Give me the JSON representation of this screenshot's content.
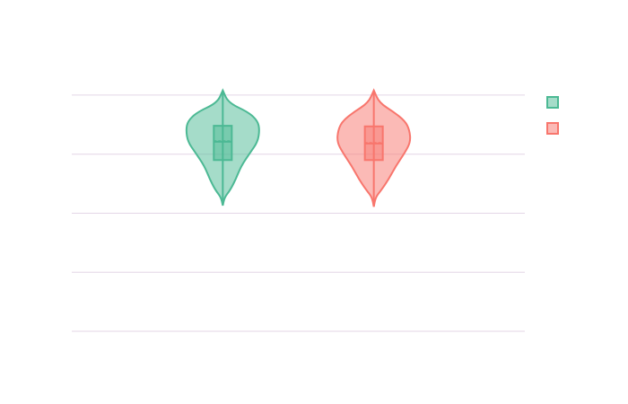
{
  "chart_data": {
    "type": "violin",
    "x": [
      1,
      2
    ],
    "xlim": [
      0,
      3
    ],
    "ylim": [
      0,
      4.09
    ],
    "yticks": [
      0,
      1,
      2,
      3,
      4
    ],
    "grid": true,
    "series": [
      {
        "color": "#4cb994",
        "min": 2.13,
        "q1": 2.9,
        "median": 3.21,
        "mean": 3.22,
        "q3": 3.48,
        "max": 4.08,
        "kde_y": [
          4.08,
          3.87,
          3.71,
          3.56,
          3.41,
          3.21,
          3.03,
          2.8,
          2.57,
          2.39,
          2.27,
          2.13
        ],
        "density": [
          0,
          0.15,
          0.7,
          0.95,
          1,
          0.95,
          0.75,
          0.5,
          0.35,
          0.2,
          0.05,
          0
        ]
      },
      {
        "color": "#f8766d",
        "min": 2.11,
        "q1": 2.9,
        "median": 3.18,
        "mean": 3.19,
        "q3": 3.47,
        "max": 4.08,
        "kde_y": [
          4.08,
          3.87,
          3.71,
          3.56,
          3.41,
          3.21,
          3.03,
          2.8,
          2.57,
          2.39,
          2.27,
          2.11
        ],
        "density": [
          0,
          0.15,
          0.55,
          0.85,
          0.97,
          1,
          0.85,
          0.6,
          0.4,
          0.2,
          0.05,
          0
        ]
      }
    ]
  }
}
